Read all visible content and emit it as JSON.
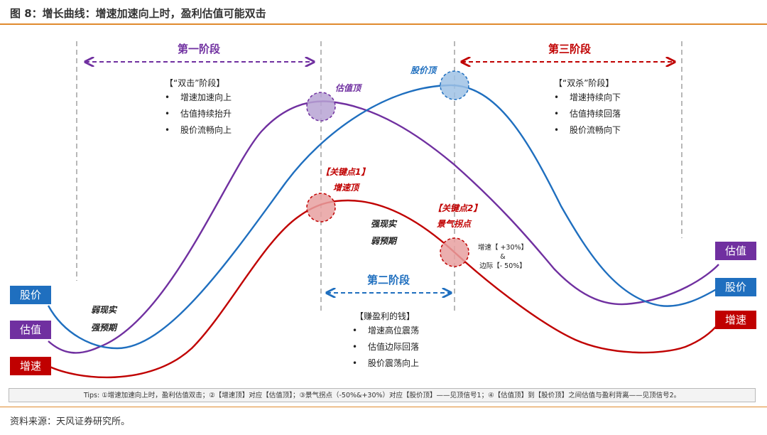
{
  "figure_title": "图 8：增长曲线：增速加速向上时，盈利估值可能双击",
  "source": "资料来源：天风证券研究所。",
  "tips": "Tips: ①增速加速向上时，盈利估值双击；②【增速顶】对应【估值顶】；③景气拐点（-50%&+30%）对应【股价顶】——见顶信号1；④【估值顶】到【股价顶】之间估值与盈利背离——见顶信号2。",
  "phase1": {
    "title": "第一阶段",
    "box_title": "【“双击”阶段】",
    "bullets": [
      "增速加速向上",
      "估值持续抬升",
      "股价流畅向上"
    ]
  },
  "phase2": {
    "title": "第二阶段",
    "box_title": "【赚盈利的钱】",
    "bullets": [
      "增速高位震荡",
      "估值边际回落",
      "股价震荡向上"
    ]
  },
  "phase3": {
    "title": "第三阶段",
    "box_title": "【“双杀”阶段】",
    "bullets": [
      "增速持续向下",
      "估值持续回落",
      "股价流畅向下"
    ]
  },
  "labels": {
    "valuation_top": "估值顶",
    "price_top": "股价顶",
    "key_point1": "【关键点1】",
    "growth_top": "增速顶",
    "key_point2": "【关键点2】",
    "inflection": "景气拐点",
    "strong_real": "强现实",
    "weak_expect": "弱预期",
    "weak_real": "弱现实",
    "strong_expect": "强预期",
    "note_line1": "增速【 +30%】",
    "note_line2": "&",
    "note_line3": "边际【- 50%】"
  },
  "legend_left": {
    "price": "股价",
    "valuation": "估值",
    "growth": "增速"
  },
  "legend_right": {
    "valuation": "估值",
    "price": "股价",
    "growth": "增速"
  },
  "colors": {
    "price": "#1f6fbf",
    "valuation": "#7030a0",
    "growth": "#c00000",
    "rule": "#e08a2e"
  }
}
